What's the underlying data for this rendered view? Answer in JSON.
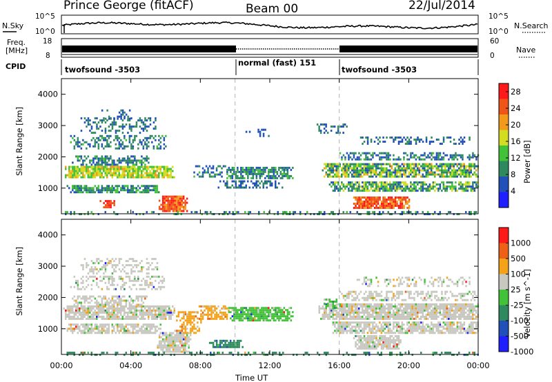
{
  "header": {
    "station": "Prince George (fitACF)",
    "beam": "Beam 00",
    "date": "22/Jul/2014"
  },
  "noise_panel": {
    "left_label": "N.Sky",
    "right_label": "N.Search",
    "left_ticks": [
      "10^5",
      "10^0"
    ],
    "right_ticks": [
      "10^5",
      "10^0"
    ]
  },
  "freq_panel": {
    "left_label_1": "Freq.",
    "left_label_2": "[MHz]",
    "right_label": "Nave",
    "left_ticks": [
      "18",
      "8"
    ],
    "right_ticks": [
      "60",
      "0"
    ]
  },
  "cpid_panel": {
    "label": "CPID",
    "segments": [
      {
        "name": "twofsound -3503",
        "start_hour": 0,
        "end_hour": 10
      },
      {
        "name": "normal (fast) 151",
        "start_hour": 10,
        "end_hour": 16
      },
      {
        "name": "twofsound -3503",
        "start_hour": 16,
        "end_hour": 24
      }
    ]
  },
  "chart_data": [
    {
      "type": "heatmap",
      "title": "",
      "ylabel": "Slant Range [km]",
      "yticks": [
        "1000",
        "2000",
        "3000",
        "4000"
      ],
      "ylim": [
        180,
        4500
      ],
      "xlim": [
        0,
        24
      ],
      "colorbar_label": "Power [dB]",
      "colorbar_ticks": [
        "4",
        "8",
        "12",
        "16",
        "20",
        "24",
        "28"
      ],
      "colorbar_range": [
        0,
        30
      ],
      "colors": [
        "#1f1fff",
        "#2050b8",
        "#2e8a5e",
        "#42c238",
        "#d4dc22",
        "#f39a1a",
        "#ee5516",
        "#ff1a1a"
      ],
      "x_dividers": [
        10,
        16
      ],
      "bands": [
        {
          "t0": 0.1,
          "t1": 6.5,
          "r0": 1380,
          "r1": 1720,
          "dens": 0.85,
          "v0": 12,
          "v1": 20
        },
        {
          "t0": 0.3,
          "t1": 5.7,
          "r0": 900,
          "r1": 1150,
          "dens": 0.75,
          "v0": 6,
          "v1": 14
        },
        {
          "t0": 0.6,
          "t1": 5.0,
          "r0": 1780,
          "r1": 2100,
          "dens": 0.55,
          "v0": 5,
          "v1": 12
        },
        {
          "t0": 0.5,
          "t1": 6.0,
          "r0": 2300,
          "r1": 2700,
          "dens": 0.4,
          "v0": 5,
          "v1": 12
        },
        {
          "t0": 1.0,
          "t1": 5.5,
          "r0": 2800,
          "r1": 3300,
          "dens": 0.35,
          "v0": 4,
          "v1": 11
        },
        {
          "t0": 2.2,
          "t1": 4.0,
          "r0": 3250,
          "r1": 3550,
          "dens": 0.3,
          "v0": 4,
          "v1": 10
        },
        {
          "t0": 5.6,
          "t1": 7.2,
          "r0": 300,
          "r1": 800,
          "dens": 0.95,
          "v0": 20,
          "v1": 30
        },
        {
          "t0": 2.2,
          "t1": 3.0,
          "r0": 420,
          "r1": 620,
          "dens": 0.85,
          "v0": 24,
          "v1": 30
        },
        {
          "t0": 7.6,
          "t1": 9.4,
          "r0": 1400,
          "r1": 1750,
          "dens": 0.5,
          "v0": 4,
          "v1": 12
        },
        {
          "t0": 9.4,
          "t1": 13.3,
          "r0": 1350,
          "r1": 1700,
          "dens": 0.75,
          "v0": 5,
          "v1": 13
        },
        {
          "t0": 9.0,
          "t1": 12.8,
          "r0": 1050,
          "r1": 1300,
          "dens": 0.45,
          "v0": 4,
          "v1": 10
        },
        {
          "t0": 10.5,
          "t1": 12.0,
          "r0": 2700,
          "r1": 2950,
          "dens": 0.25,
          "v0": 4,
          "v1": 8
        },
        {
          "t0": 15.0,
          "t1": 24.0,
          "r0": 1400,
          "r1": 1800,
          "dens": 0.8,
          "v0": 5,
          "v1": 20
        },
        {
          "t0": 15.3,
          "t1": 24.0,
          "r0": 950,
          "r1": 1250,
          "dens": 0.75,
          "v0": 5,
          "v1": 18
        },
        {
          "t0": 16.0,
          "t1": 24.0,
          "r0": 1950,
          "r1": 2200,
          "dens": 0.5,
          "v0": 4,
          "v1": 12
        },
        {
          "t0": 17.0,
          "t1": 23.5,
          "r0": 2450,
          "r1": 2700,
          "dens": 0.3,
          "v0": 4,
          "v1": 10
        },
        {
          "t0": 16.8,
          "t1": 20.0,
          "r0": 400,
          "r1": 750,
          "dens": 0.9,
          "v0": 20,
          "v1": 30
        },
        {
          "t0": 14.5,
          "t1": 16.5,
          "r0": 2800,
          "r1": 3100,
          "dens": 0.3,
          "v0": 4,
          "v1": 10
        },
        {
          "t0": 0.0,
          "t1": 24.0,
          "r0": 200,
          "r1": 330,
          "dens": 0.35,
          "v0": 4,
          "v1": 14
        }
      ]
    },
    {
      "type": "heatmap",
      "title": "",
      "xlabel": "Time UT",
      "ylabel": "Slant Range [km]",
      "xticks": [
        "00:00",
        "04:00",
        "08:00",
        "12:00",
        "16:00",
        "20:00",
        "00:00"
      ],
      "yticks": [
        "1000",
        "2000",
        "3000",
        "4000"
      ],
      "ylim": [
        180,
        4500
      ],
      "xlim": [
        0,
        24
      ],
      "colorbar_label": "Velocity [m s^-1]",
      "colorbar_ticks": [
        "1000",
        "500",
        "100",
        "25",
        "-25",
        "-100",
        "-500",
        "-1000"
      ],
      "colors": [
        "#1f1fff",
        "#2050b8",
        "#2e8a5e",
        "#42c238",
        "#c8c8c0",
        "#f3a21a",
        "#ee6016",
        "#ff1a1a"
      ],
      "x_dividers": [
        10,
        16
      ],
      "bands": [
        {
          "t0": 0.1,
          "t1": 6.5,
          "r0": 1350,
          "r1": 1750,
          "dens": 0.85,
          "v0": 4,
          "v1": 4
        },
        {
          "t0": 0.3,
          "t1": 5.7,
          "r0": 900,
          "r1": 1200,
          "dens": 0.75,
          "v0": 4,
          "v1": 4
        },
        {
          "t0": 0.6,
          "t1": 5.0,
          "r0": 1800,
          "r1": 2100,
          "dens": 0.55,
          "v0": 4,
          "v1": 4
        },
        {
          "t0": 0.5,
          "t1": 6.0,
          "r0": 2300,
          "r1": 2700,
          "dens": 0.35,
          "v0": 4,
          "v1": 4
        },
        {
          "t0": 1.0,
          "t1": 5.5,
          "r0": 2800,
          "r1": 3300,
          "dens": 0.3,
          "v0": 4,
          "v1": 4
        },
        {
          "t0": 5.5,
          "t1": 7.4,
          "r0": 300,
          "r1": 900,
          "dens": 0.9,
          "v0": 4,
          "v1": 4
        },
        {
          "t0": 6.5,
          "t1": 8.0,
          "r0": 900,
          "r1": 1600,
          "dens": 0.6,
          "v0": 5,
          "v1": 6
        },
        {
          "t0": 7.8,
          "t1": 9.6,
          "r0": 1350,
          "r1": 1750,
          "dens": 0.7,
          "v0": 5,
          "v1": 6
        },
        {
          "t0": 9.6,
          "t1": 13.3,
          "r0": 1300,
          "r1": 1700,
          "dens": 0.85,
          "v0": 3,
          "v1": 3
        },
        {
          "t0": 8.5,
          "t1": 10.5,
          "r0": 450,
          "r1": 650,
          "dens": 0.8,
          "v0": 2,
          "v1": 2
        },
        {
          "t0": 14.8,
          "t1": 24.0,
          "r0": 1350,
          "r1": 1850,
          "dens": 0.85,
          "v0": 4,
          "v1": 4
        },
        {
          "t0": 15.5,
          "t1": 24.0,
          "r0": 900,
          "r1": 1250,
          "dens": 0.75,
          "v0": 4,
          "v1": 4
        },
        {
          "t0": 16.0,
          "t1": 24.0,
          "r0": 1950,
          "r1": 2250,
          "dens": 0.5,
          "v0": 4,
          "v1": 4
        },
        {
          "t0": 16.8,
          "t1": 19.5,
          "r0": 400,
          "r1": 800,
          "dens": 0.85,
          "v0": 4,
          "v1": 4
        },
        {
          "t0": 15.0,
          "t1": 16.0,
          "r0": 1700,
          "r1": 2000,
          "dens": 0.6,
          "v0": 3,
          "v1": 3
        },
        {
          "t0": 17.0,
          "t1": 23.5,
          "r0": 2400,
          "r1": 2700,
          "dens": 0.3,
          "v0": 4,
          "v1": 4
        },
        {
          "t0": 0.0,
          "t1": 24.0,
          "r0": 200,
          "r1": 330,
          "dens": 0.3,
          "v0": 2,
          "v1": 6
        }
      ]
    }
  ]
}
